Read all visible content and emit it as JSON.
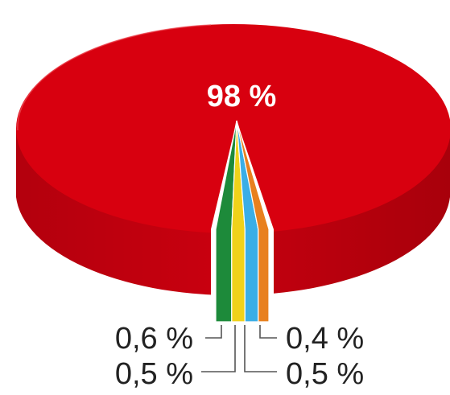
{
  "chart_data": {
    "type": "pie",
    "style": "3d",
    "slices": [
      {
        "label": "98 %",
        "value": 98,
        "color": "#d8000f"
      },
      {
        "label": "0,6 %",
        "value": 0.6,
        "color": "#1d8a3a"
      },
      {
        "label": "0,5 %",
        "value": 0.5,
        "color": "#f0d21a"
      },
      {
        "label": "0,5 %",
        "value": 0.5,
        "color": "#3aaee6"
      },
      {
        "label": "0,4 %",
        "value": 0.4,
        "color": "#e8801e"
      }
    ],
    "legend": "none"
  }
}
